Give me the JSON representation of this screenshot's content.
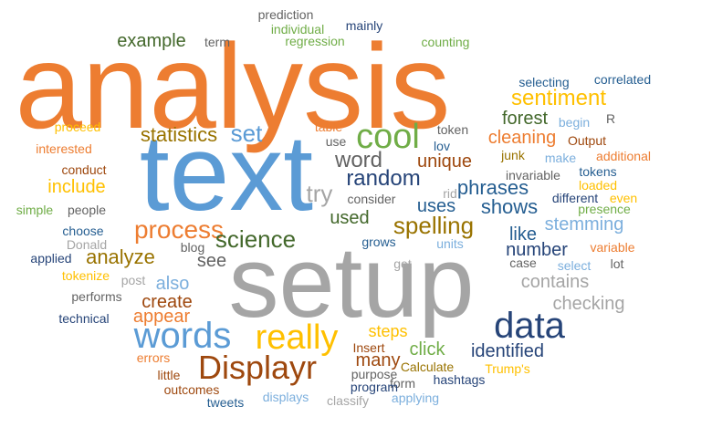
{
  "palette": {
    "orange": "#ED7D31",
    "blue": "#5B9BD5",
    "gray": "#A5A5A5",
    "gold": "#FFC000",
    "darkblue": "#264478",
    "green": "#70AD47",
    "brown": "#9E480E",
    "darkgray": "#636363",
    "olive": "#997300",
    "navy": "#255E91",
    "darkgreen": "#43682B",
    "lightblue": "#7CAFDD"
  },
  "words": [
    {
      "text": "analysis",
      "color": "orange"
    },
    {
      "text": "text",
      "color": "blue"
    },
    {
      "text": "setup",
      "color": "gray"
    },
    {
      "text": "data",
      "color": "darkblue"
    },
    {
      "text": "cool",
      "color": "green"
    },
    {
      "text": "Displayr",
      "color": "brown"
    },
    {
      "text": "really",
      "color": "gold"
    },
    {
      "text": "words",
      "color": "blue"
    },
    {
      "text": "process",
      "color": "orange"
    },
    {
      "text": "science",
      "color": "darkgreen"
    },
    {
      "text": "sentiment",
      "color": "gold"
    },
    {
      "text": "random",
      "color": "darkblue"
    },
    {
      "text": "spelling",
      "color": "olive"
    },
    {
      "text": "word",
      "color": "darkgray"
    },
    {
      "text": "try",
      "color": "gray"
    },
    {
      "text": "set",
      "color": "blue"
    },
    {
      "text": "statistics",
      "color": "olive"
    },
    {
      "text": "example",
      "color": "darkgreen"
    },
    {
      "text": "forest",
      "color": "darkgreen"
    },
    {
      "text": "cleaning",
      "color": "orange"
    },
    {
      "text": "unique",
      "color": "brown"
    },
    {
      "text": "phrases",
      "color": "navy"
    },
    {
      "text": "shows",
      "color": "navy"
    },
    {
      "text": "used",
      "color": "darkgreen"
    },
    {
      "text": "uses",
      "color": "navy"
    },
    {
      "text": "include",
      "color": "gold"
    },
    {
      "text": "stemming",
      "color": "lightblue"
    },
    {
      "text": "like",
      "color": "navy"
    },
    {
      "text": "number",
      "color": "darkblue"
    },
    {
      "text": "contains",
      "color": "gray"
    },
    {
      "text": "checking",
      "color": "gray"
    },
    {
      "text": "analyze",
      "color": "olive"
    },
    {
      "text": "see",
      "color": "darkgray"
    },
    {
      "text": "also",
      "color": "lightblue"
    },
    {
      "text": "create",
      "color": "brown"
    },
    {
      "text": "appear",
      "color": "orange"
    },
    {
      "text": "steps",
      "color": "gold"
    },
    {
      "text": "many",
      "color": "brown"
    },
    {
      "text": "click",
      "color": "green"
    },
    {
      "text": "identified",
      "color": "darkblue"
    },
    {
      "text": "prediction",
      "color": "darkgray"
    },
    {
      "text": "individual",
      "color": "green"
    },
    {
      "text": "regression",
      "color": "green"
    },
    {
      "text": "mainly",
      "color": "darkblue"
    },
    {
      "text": "counting",
      "color": "green"
    },
    {
      "text": "term",
      "color": "darkgray"
    },
    {
      "text": "selecting",
      "color": "navy"
    },
    {
      "text": "correlated",
      "color": "navy"
    },
    {
      "text": "R",
      "color": "darkgray"
    },
    {
      "text": "begin",
      "color": "lightblue"
    },
    {
      "text": "proceed",
      "color": "gold"
    },
    {
      "text": "table",
      "color": "orange"
    },
    {
      "text": "token",
      "color": "darkgray"
    },
    {
      "text": "use",
      "color": "darkgray"
    },
    {
      "text": "lov",
      "color": "navy"
    },
    {
      "text": "Output",
      "color": "brown"
    },
    {
      "text": "interested",
      "color": "orange"
    },
    {
      "text": "junk",
      "color": "olive"
    },
    {
      "text": "make",
      "color": "lightblue"
    },
    {
      "text": "additional",
      "color": "orange"
    },
    {
      "text": "conduct",
      "color": "brown"
    },
    {
      "text": "invariable",
      "color": "darkgray"
    },
    {
      "text": "tokens",
      "color": "navy"
    },
    {
      "text": "loaded",
      "color": "gold"
    },
    {
      "text": "rid",
      "color": "gray"
    },
    {
      "text": "consider",
      "color": "darkgray"
    },
    {
      "text": "different",
      "color": "darkblue"
    },
    {
      "text": "even",
      "color": "gold"
    },
    {
      "text": "presence",
      "color": "green"
    },
    {
      "text": "simple",
      "color": "green"
    },
    {
      "text": "people",
      "color": "darkgray"
    },
    {
      "text": "choose",
      "color": "navy"
    },
    {
      "text": "Donald",
      "color": "gray"
    },
    {
      "text": "blog",
      "color": "darkgray"
    },
    {
      "text": "grows",
      "color": "navy"
    },
    {
      "text": "units",
      "color": "lightblue"
    },
    {
      "text": "variable",
      "color": "orange"
    },
    {
      "text": "applied",
      "color": "darkblue"
    },
    {
      "text": "case",
      "color": "darkgray"
    },
    {
      "text": "select",
      "color": "lightblue"
    },
    {
      "text": "lot",
      "color": "darkgray"
    },
    {
      "text": "get",
      "color": "gray"
    },
    {
      "text": "post",
      "color": "gray"
    },
    {
      "text": "tokenize",
      "color": "gold"
    },
    {
      "text": "performs",
      "color": "darkgray"
    },
    {
      "text": "technical",
      "color": "darkblue"
    },
    {
      "text": "Insert",
      "color": "brown"
    },
    {
      "text": "errors",
      "color": "orange"
    },
    {
      "text": "Calculate",
      "color": "olive"
    },
    {
      "text": "Trump's",
      "color": "gold"
    },
    {
      "text": "purpose",
      "color": "darkgray"
    },
    {
      "text": "form",
      "color": "darkgray"
    },
    {
      "text": "hashtags",
      "color": "darkblue"
    },
    {
      "text": "little",
      "color": "brown"
    },
    {
      "text": "program",
      "color": "darkblue"
    },
    {
      "text": "outcomes",
      "color": "brown"
    },
    {
      "text": "tweets",
      "color": "navy"
    },
    {
      "text": "displays",
      "color": "lightblue"
    },
    {
      "text": "classify",
      "color": "gray"
    },
    {
      "text": "applying",
      "color": "lightblue"
    }
  ]
}
